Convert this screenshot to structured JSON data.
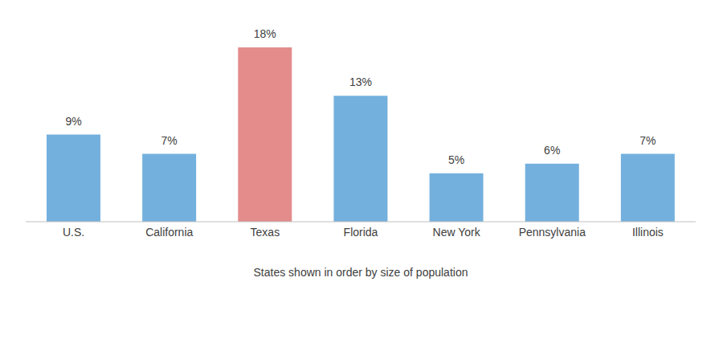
{
  "chart_data": {
    "type": "bar",
    "x_label": "States shown in order by size of population",
    "categories": [
      "U.S.",
      "California",
      "Texas",
      "Florida",
      "New York",
      "Pennsylvania",
      "Illinois"
    ],
    "values": [
      9,
      7,
      18,
      13,
      5,
      6,
      7
    ],
    "value_labels": [
      "9%",
      "7%",
      "18%",
      "13%",
      "5%",
      "6%",
      "7%"
    ],
    "colors": [
      "#74b0dd",
      "#74b0dd",
      "#e48c8c",
      "#74b0dd",
      "#74b0dd",
      "#74b0dd",
      "#74b0dd"
    ],
    "ylim": [
      0,
      18
    ],
    "data_labels": true,
    "tick_labels": "x",
    "grid": false
  }
}
